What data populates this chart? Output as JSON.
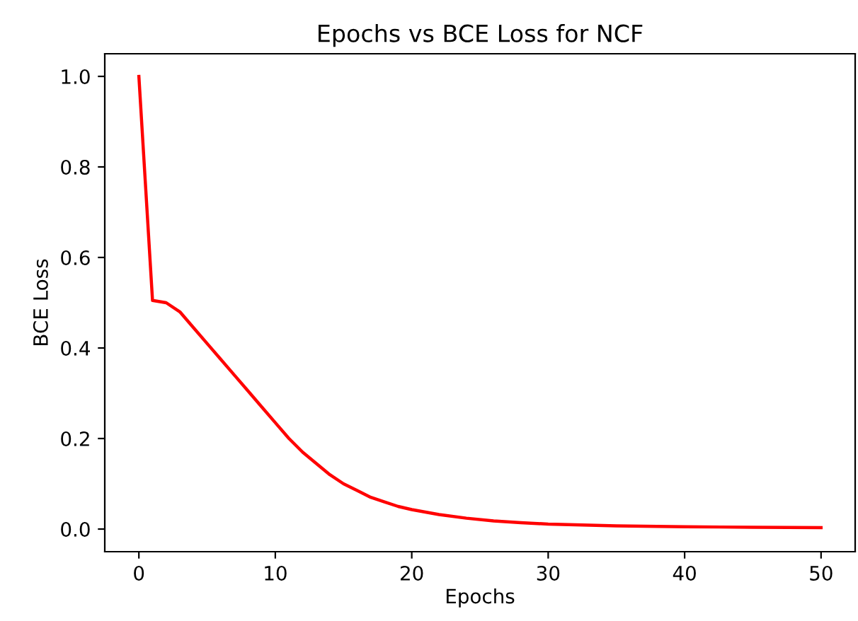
{
  "chart_data": {
    "type": "line",
    "title": "Epochs vs BCE Loss for NCF",
    "xlabel": "Epochs",
    "ylabel": "BCE Loss",
    "x": [
      0,
      1,
      2,
      3,
      4,
      5,
      6,
      7,
      8,
      9,
      10,
      11,
      12,
      13,
      14,
      15,
      16,
      17,
      18,
      19,
      20,
      22,
      24,
      26,
      28,
      30,
      35,
      40,
      45,
      50
    ],
    "series": [
      {
        "color": "#ff0000",
        "values": [
          1.0,
          0.505,
          0.5,
          0.48,
          0.445,
          0.41,
          0.375,
          0.34,
          0.305,
          0.27,
          0.235,
          0.2,
          0.17,
          0.145,
          0.12,
          0.1,
          0.085,
          0.07,
          0.06,
          0.05,
          0.043,
          0.032,
          0.024,
          0.018,
          0.014,
          0.011,
          0.007,
          0.005,
          0.004,
          0.003
        ]
      }
    ],
    "xlim": [
      -2.5,
      52.5
    ],
    "ylim": [
      -0.05,
      1.05
    ],
    "xticks": [
      0,
      10,
      20,
      30,
      40,
      50
    ],
    "yticks": [
      {
        "value": 0,
        "label": "0.0"
      },
      {
        "value": 0.2,
        "label": "0.2"
      },
      {
        "value": 0.4,
        "label": "0.4"
      },
      {
        "value": 0.6,
        "label": "0.6"
      },
      {
        "value": 0.8,
        "label": "0.8"
      },
      {
        "value": 1.0,
        "label": "1.0"
      }
    ],
    "grid": false
  }
}
